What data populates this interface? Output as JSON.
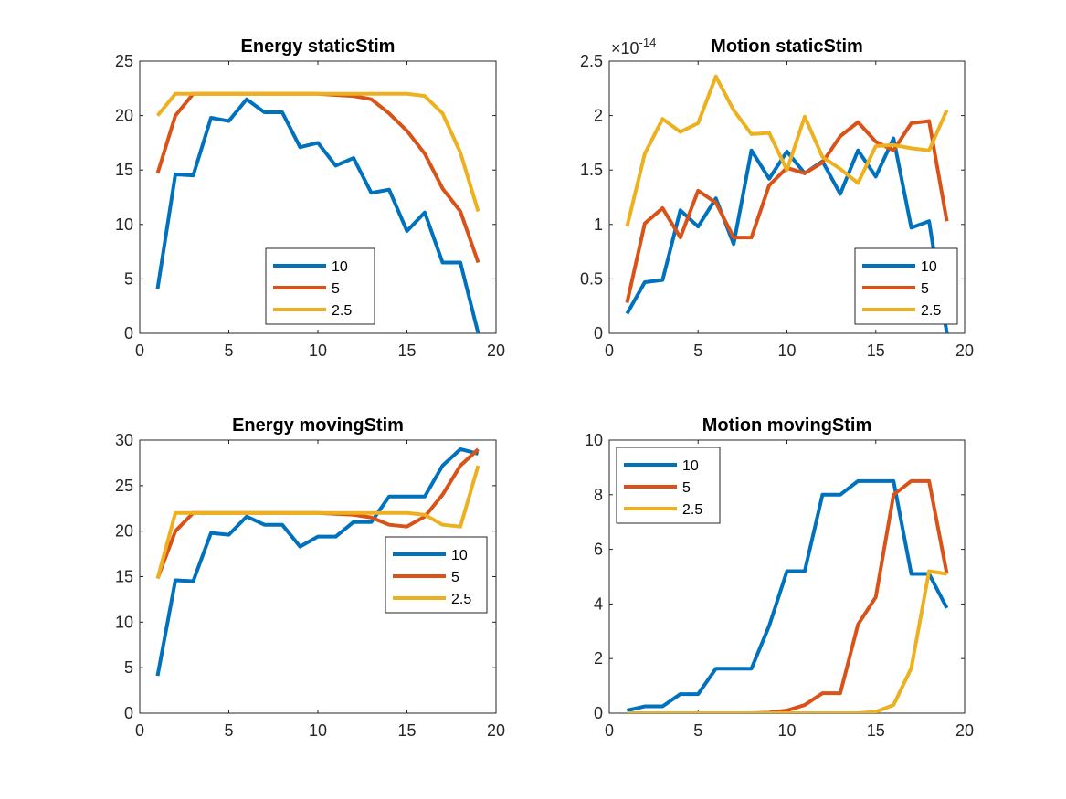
{
  "chart_data": [
    {
      "type": "line",
      "title": "Energy staticStim",
      "xlim": [
        0,
        20
      ],
      "ylim": [
        0,
        25
      ],
      "xticks": [
        0,
        5,
        10,
        15,
        20
      ],
      "yticks": [
        0,
        5,
        10,
        15,
        20,
        25
      ],
      "exponent": "",
      "legend_position": "bottom-center",
      "x": [
        1,
        2,
        3,
        4,
        5,
        6,
        7,
        8,
        9,
        10,
        11,
        12,
        13,
        14,
        15,
        16,
        17,
        18,
        19
      ],
      "series": [
        {
          "name": "10",
          "color": "#0072BD",
          "values": [
            4.1,
            14.6,
            14.5,
            19.8,
            19.5,
            21.5,
            20.3,
            20.3,
            17.1,
            17.5,
            15.4,
            16.1,
            12.9,
            13.2,
            9.4,
            11.1,
            6.5,
            6.5,
            0
          ]
        },
        {
          "name": "5",
          "color": "#D95319",
          "values": [
            14.7,
            20.0,
            22.0,
            22.0,
            22.0,
            22.0,
            22.0,
            22.0,
            22.0,
            22.0,
            21.9,
            21.8,
            21.5,
            20.2,
            18.6,
            16.5,
            13.3,
            11.2,
            6.5
          ]
        },
        {
          "name": "2.5",
          "color": "#EDB120",
          "values": [
            20.0,
            22.0,
            22.0,
            22.0,
            22.0,
            22.0,
            22.0,
            22.0,
            22.0,
            22.0,
            22.0,
            22.0,
            22.0,
            22.0,
            22.0,
            21.8,
            20.2,
            16.6,
            11.2
          ]
        }
      ]
    },
    {
      "type": "line",
      "title": "Motion staticStim",
      "xlim": [
        0,
        20
      ],
      "ylim": [
        0,
        2.5
      ],
      "xticks": [
        0,
        5,
        10,
        15,
        20
      ],
      "yticks": [
        0,
        0.5,
        1,
        1.5,
        2,
        2.5
      ],
      "exponent": "×10",
      "exponent_power": "-14",
      "legend_position": "bottom-right",
      "x": [
        1,
        2,
        3,
        4,
        5,
        6,
        7,
        8,
        9,
        10,
        11,
        12,
        13,
        14,
        15,
        16,
        17,
        18,
        19
      ],
      "series": [
        {
          "name": "10",
          "color": "#0072BD",
          "values": [
            0.18,
            0.47,
            0.49,
            1.13,
            0.98,
            1.24,
            0.82,
            1.68,
            1.42,
            1.67,
            1.47,
            1.58,
            1.28,
            1.68,
            1.44,
            1.79,
            0.97,
            1.03,
            0
          ]
        },
        {
          "name": "5",
          "color": "#D95319",
          "values": [
            0.28,
            1.01,
            1.15,
            0.88,
            1.31,
            1.2,
            0.88,
            0.88,
            1.36,
            1.52,
            1.47,
            1.57,
            1.81,
            1.94,
            1.76,
            1.68,
            1.93,
            1.95,
            1.03
          ]
        },
        {
          "name": "2.5",
          "color": "#EDB120",
          "values": [
            0.98,
            1.65,
            1.97,
            1.85,
            1.93,
            2.36,
            2.05,
            1.83,
            1.84,
            1.5,
            1.99,
            1.62,
            1.51,
            1.38,
            1.72,
            1.73,
            1.7,
            1.68,
            2.05
          ]
        }
      ]
    },
    {
      "type": "line",
      "title": "Energy movingStim",
      "xlim": [
        0,
        20
      ],
      "ylim": [
        0,
        30
      ],
      "xticks": [
        0,
        5,
        10,
        15,
        20
      ],
      "yticks": [
        0,
        5,
        10,
        15,
        20,
        25,
        30
      ],
      "exponent": "",
      "legend_position": "middle-right",
      "x": [
        1,
        2,
        3,
        4,
        5,
        6,
        7,
        8,
        9,
        10,
        11,
        12,
        13,
        14,
        15,
        16,
        17,
        18,
        19
      ],
      "series": [
        {
          "name": "10",
          "color": "#0072BD",
          "values": [
            4.1,
            14.6,
            14.5,
            19.8,
            19.6,
            21.6,
            20.7,
            20.7,
            18.3,
            19.4,
            19.4,
            21.0,
            21.0,
            23.8,
            23.8,
            23.8,
            27.2,
            29.0,
            28.5
          ]
        },
        {
          "name": "5",
          "color": "#D95319",
          "values": [
            14.8,
            20.0,
            22.0,
            22.0,
            22.0,
            22.0,
            22.0,
            22.0,
            22.0,
            22.0,
            21.9,
            21.8,
            21.5,
            20.7,
            20.5,
            21.6,
            24.0,
            27.2,
            29.0
          ]
        },
        {
          "name": "2.5",
          "color": "#EDB120",
          "values": [
            14.8,
            22.0,
            22.0,
            22.0,
            22.0,
            22.0,
            22.0,
            22.0,
            22.0,
            22.0,
            22.0,
            22.0,
            22.0,
            22.0,
            22.0,
            21.8,
            20.7,
            20.5,
            27.2
          ]
        }
      ]
    },
    {
      "type": "line",
      "title": "Motion movingStim",
      "xlim": [
        0,
        20
      ],
      "ylim": [
        0,
        10
      ],
      "xticks": [
        0,
        5,
        10,
        15,
        20
      ],
      "yticks": [
        0,
        2,
        4,
        6,
        8,
        10
      ],
      "exponent": "",
      "legend_position": "top-left",
      "x": [
        1,
        2,
        3,
        4,
        5,
        6,
        7,
        8,
        9,
        10,
        11,
        12,
        13,
        14,
        15,
        16,
        17,
        18,
        19
      ],
      "series": [
        {
          "name": "10",
          "color": "#0072BD",
          "values": [
            0.1,
            0.25,
            0.25,
            0.7,
            0.7,
            1.63,
            1.63,
            1.63,
            3.2,
            5.2,
            5.2,
            8.0,
            8.0,
            8.5,
            8.5,
            8.5,
            5.1,
            5.1,
            3.85
          ]
        },
        {
          "name": "5",
          "color": "#D95319",
          "values": [
            0,
            0,
            0,
            0,
            0,
            0,
            0,
            0,
            0.02,
            0.1,
            0.3,
            0.73,
            0.73,
            3.25,
            4.25,
            8.0,
            8.5,
            8.5,
            5.1
          ]
        },
        {
          "name": "2.5",
          "color": "#EDB120",
          "values": [
            0,
            0,
            0,
            0,
            0,
            0,
            0,
            0,
            0,
            0,
            0,
            0,
            0,
            0,
            0.05,
            0.3,
            1.65,
            5.2,
            5.1
          ]
        }
      ]
    }
  ]
}
